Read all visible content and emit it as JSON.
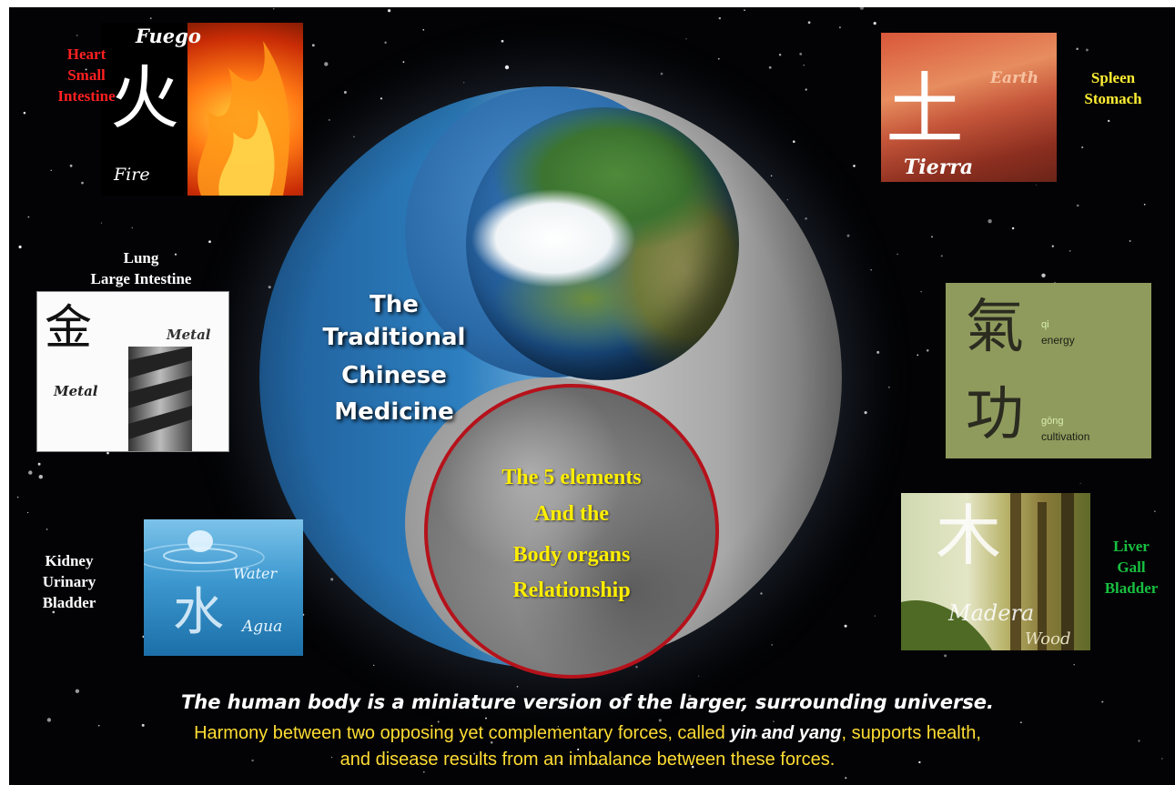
{
  "title_lines": [
    "The",
    "Traditional",
    "Chinese",
    "Medicine"
  ],
  "center_lines": [
    "The 5 elements",
    "And the",
    "Body organs",
    "Relationship"
  ],
  "fire": {
    "label_top": "Fuego",
    "glyph": "火",
    "label_bottom": "Fire",
    "organs": [
      "Heart",
      "Small",
      "Intestine"
    ],
    "organ_color": "#ff2020"
  },
  "metal": {
    "organs": [
      "Lung",
      "Large Intestine"
    ],
    "glyph": "金",
    "label_right": "Metal",
    "label_left": "Metal",
    "organ_color": "#ffffff"
  },
  "water": {
    "organs": [
      "Kidney",
      "Urinary",
      "Bladder"
    ],
    "label_top": "Water",
    "glyph": "水",
    "label_bottom": "Agua",
    "organ_color": "#ffffff"
  },
  "earth": {
    "glyph": "土",
    "label_top": "Earth",
    "label_bottom": "Tierra",
    "organs": [
      "Spleen",
      "Stomach"
    ],
    "organ_color": "#ffee33"
  },
  "qi": {
    "glyph_top": "氣",
    "glyph_bottom": "功",
    "qi_pinyin": "qi",
    "qi_meaning": "energy",
    "gong_pinyin": "gōng",
    "gong_meaning": "cultivation"
  },
  "wood": {
    "glyph": "木",
    "label_middle": "Madera",
    "label_bottom": "Wood",
    "organs": [
      "Liver",
      "Gall",
      "Bladder"
    ],
    "organ_color": "#18c040"
  },
  "bottom": {
    "line1": "The human body is a miniature version of the larger, surrounding universe.",
    "line2_before": "Harmony between two opposing yet complementary forces, called ",
    "line2_emphasis": "yin and yang",
    "line2_after": ", supports health,",
    "line3": "and disease results from an imbalance between these forces."
  },
  "colors": {
    "background": "#030305",
    "center_text": "#ffee00",
    "circle_border": "#b5121b",
    "bottom_yellow": "#ffdd33"
  }
}
